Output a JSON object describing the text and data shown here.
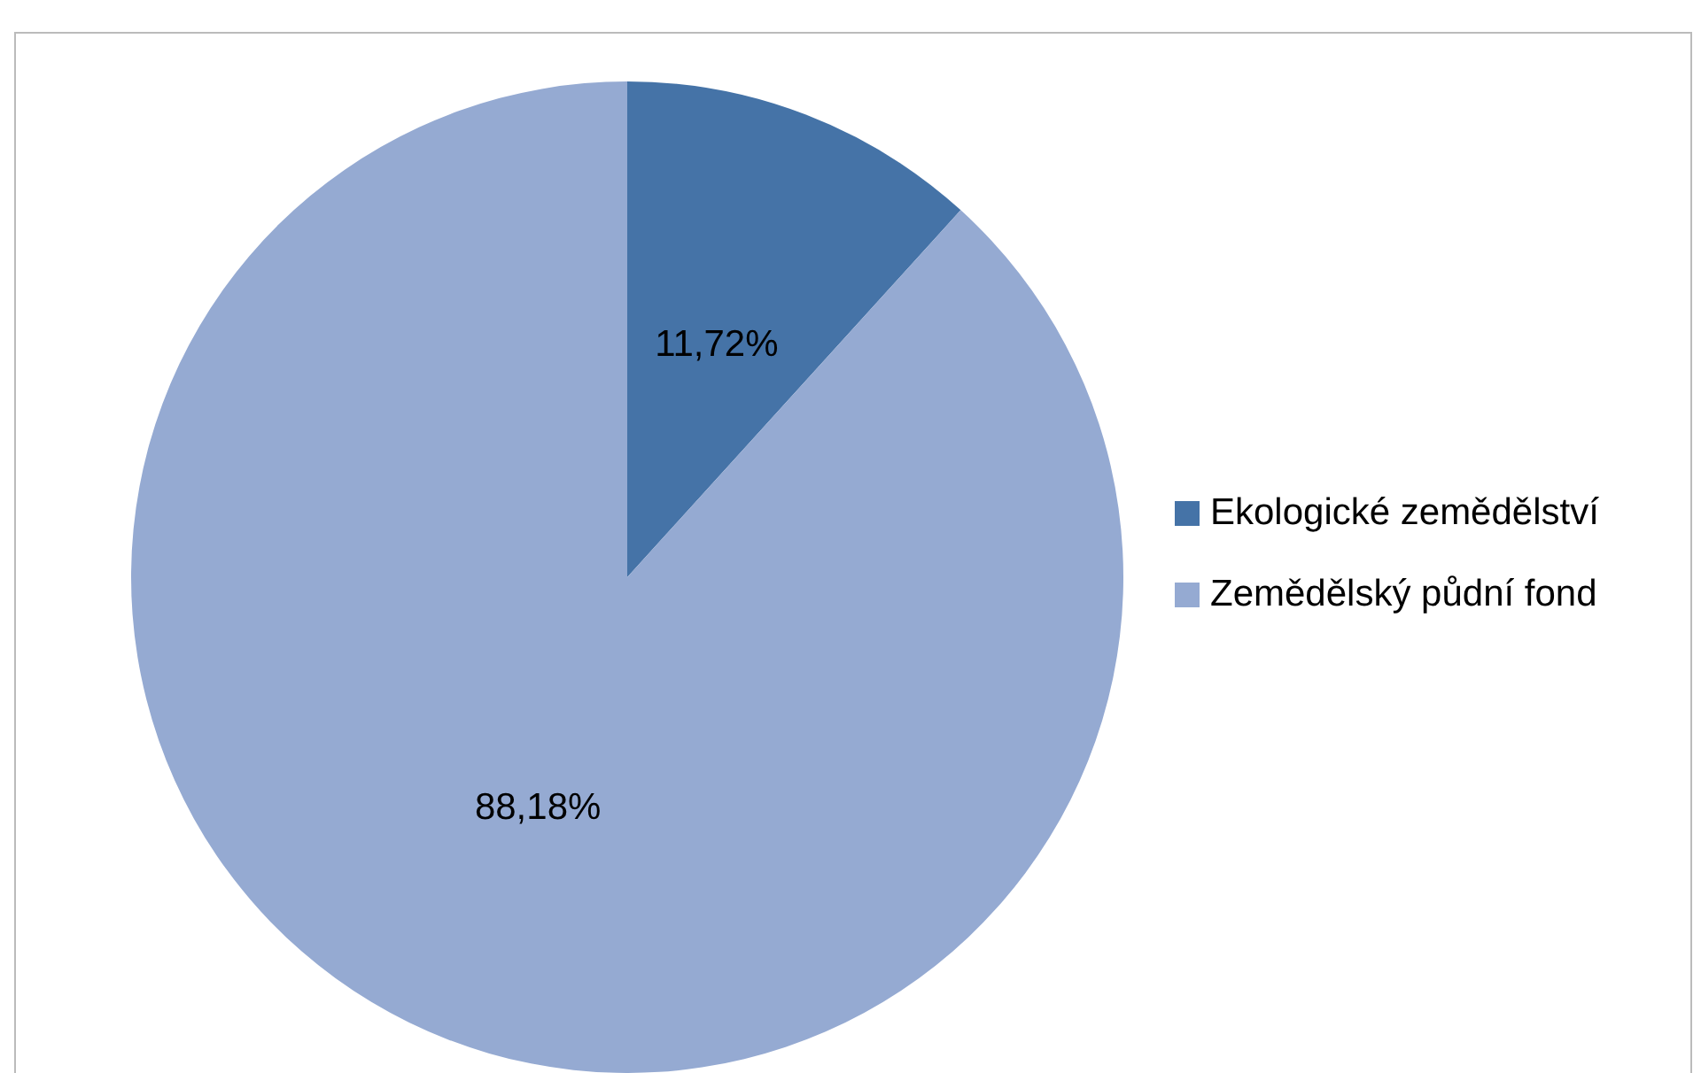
{
  "chart_data": {
    "type": "pie",
    "categories": [
      "Ekologické zemědělství",
      "Zemědělský půdní fond"
    ],
    "values": [
      11.72,
      88.18
    ],
    "colors": [
      "#4573a7",
      "#95aad2"
    ],
    "value_labels": [
      "11,72%",
      "88,18%"
    ],
    "legend": "right"
  }
}
